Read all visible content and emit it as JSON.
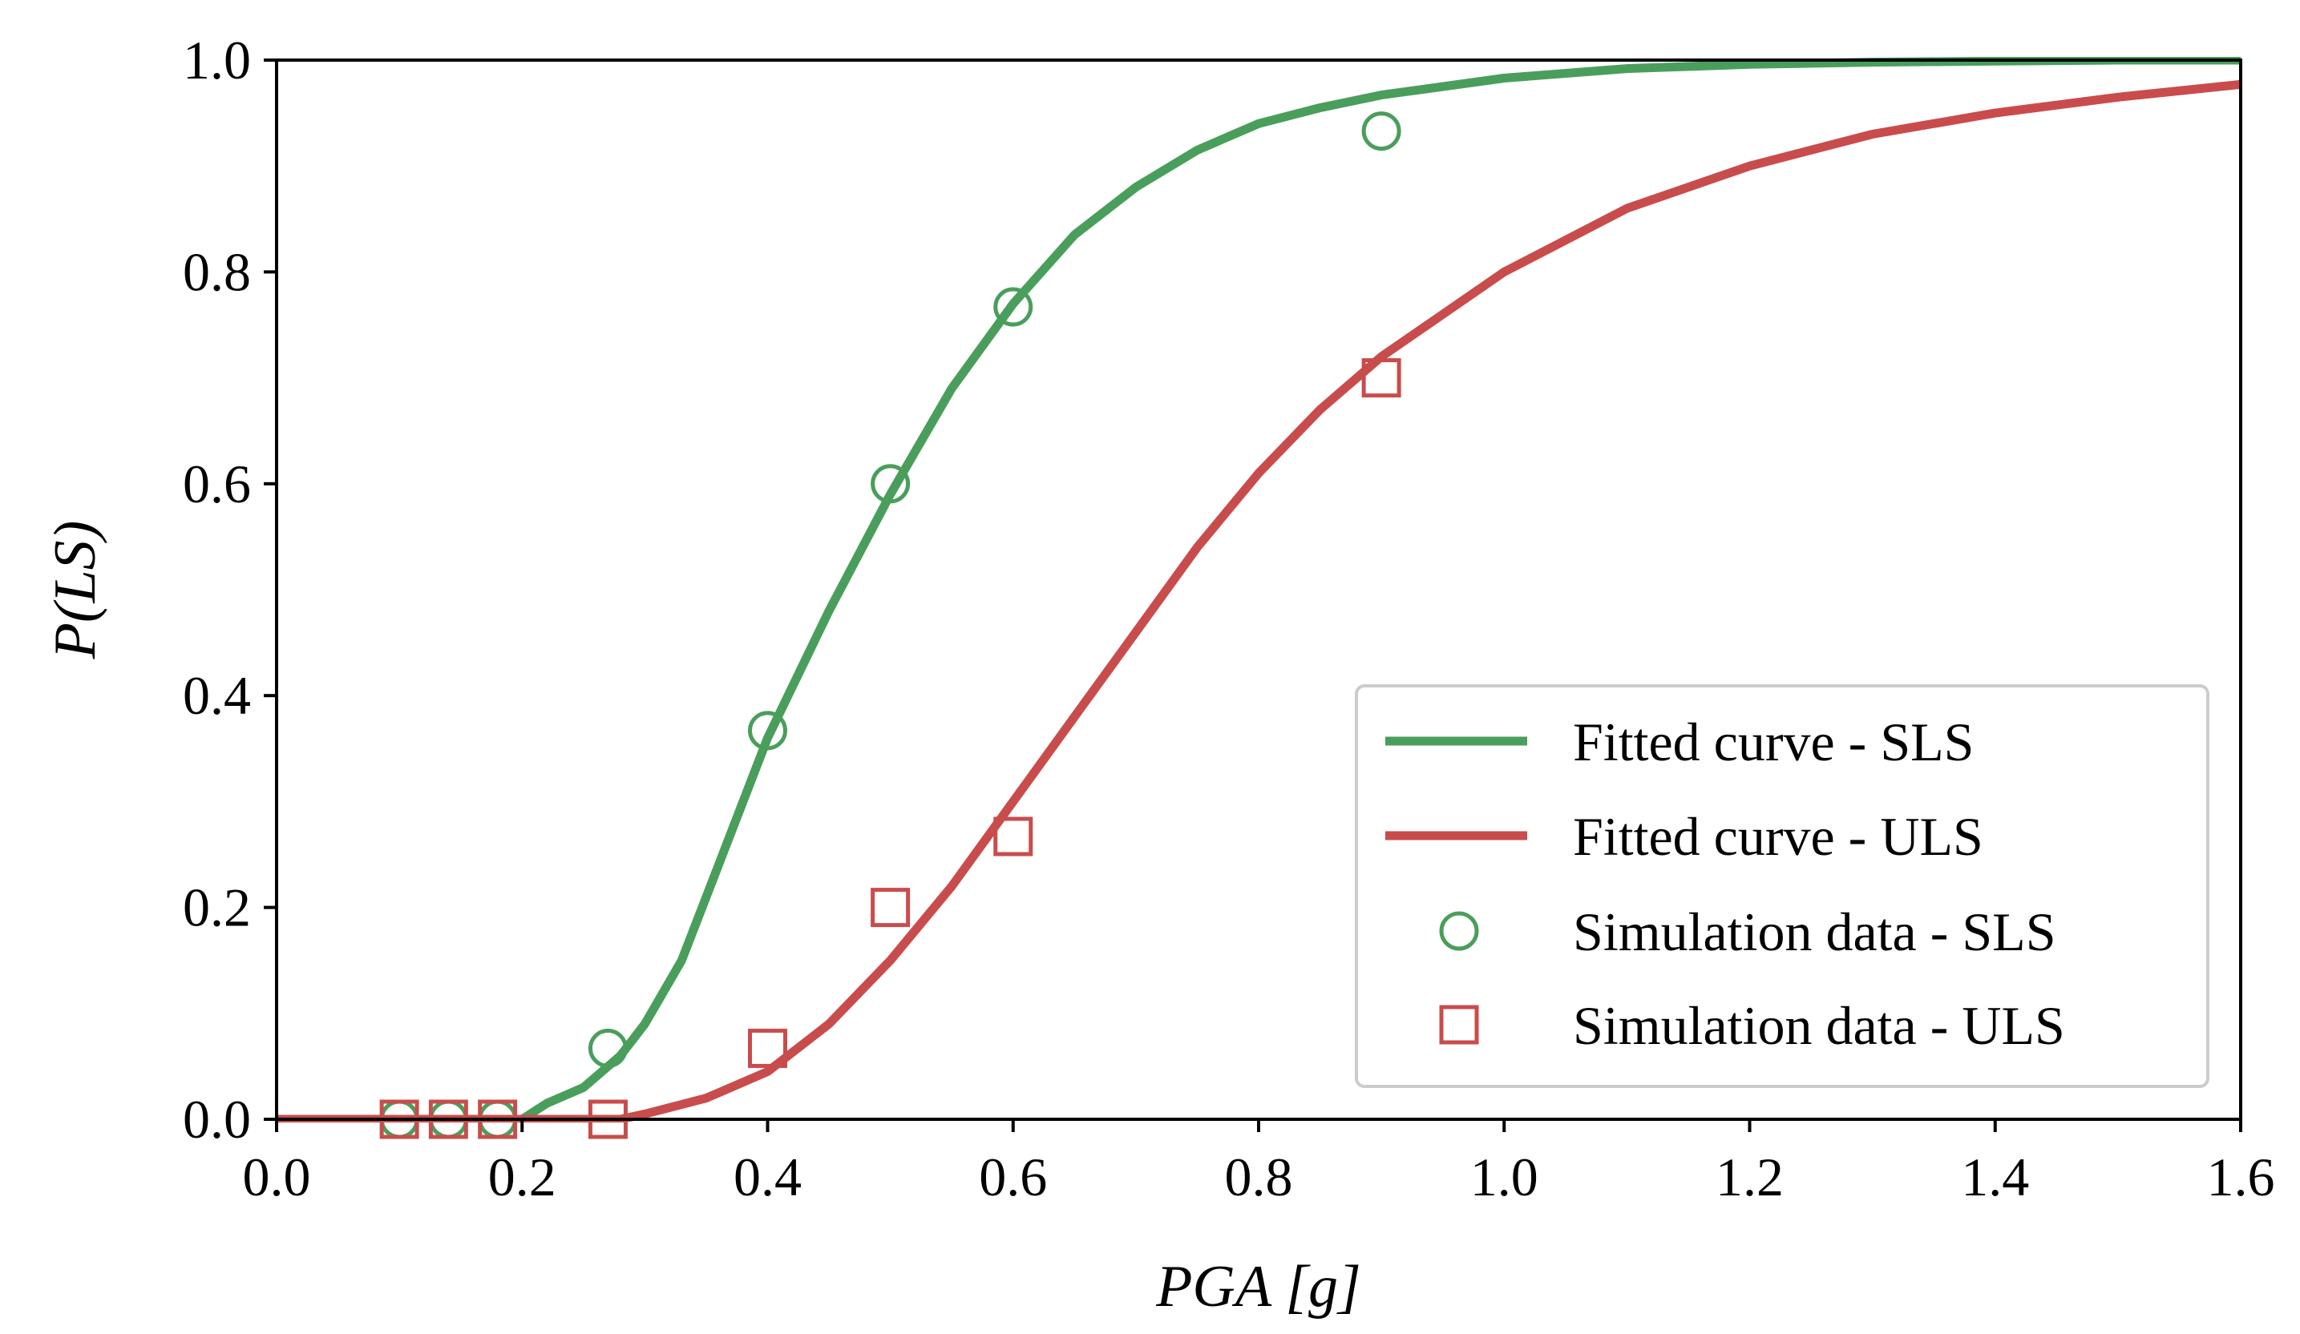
{
  "chart_data": {
    "type": "line",
    "xlabel": "PGA [g]",
    "ylabel": "P(LS)",
    "xlim": [
      0.0,
      1.6
    ],
    "ylim": [
      0.0,
      1.0
    ],
    "xticks": [
      "0.0",
      "0.2",
      "0.4",
      "0.6",
      "0.8",
      "1.0",
      "1.2",
      "1.4",
      "1.6"
    ],
    "yticks": [
      "0.0",
      "0.2",
      "0.4",
      "0.6",
      "0.8",
      "1.0"
    ],
    "grid": false,
    "legend_position": "lower-right",
    "series": [
      {
        "name": "Fitted curve - SLS",
        "kind": "line",
        "color": "#4a9e5c",
        "x": [
          0.0,
          0.05,
          0.1,
          0.15,
          0.2,
          0.22,
          0.25,
          0.28,
          0.3,
          0.33,
          0.36,
          0.4,
          0.45,
          0.5,
          0.55,
          0.6,
          0.65,
          0.7,
          0.75,
          0.8,
          0.85,
          0.9,
          1.0,
          1.1,
          1.2,
          1.3,
          1.4,
          1.5,
          1.6
        ],
        "y": [
          0.0,
          0.0,
          0.0,
          0.0,
          0.0,
          0.015,
          0.03,
          0.06,
          0.09,
          0.15,
          0.24,
          0.36,
          0.48,
          0.59,
          0.69,
          0.77,
          0.835,
          0.88,
          0.915,
          0.94,
          0.955,
          0.967,
          0.983,
          0.992,
          0.996,
          0.998,
          0.999,
          1.0,
          1.0
        ]
      },
      {
        "name": "Fitted curve - ULS",
        "kind": "line",
        "color": "#c94c4c",
        "x": [
          0.0,
          0.1,
          0.2,
          0.28,
          0.3,
          0.35,
          0.4,
          0.45,
          0.5,
          0.55,
          0.6,
          0.65,
          0.7,
          0.75,
          0.8,
          0.85,
          0.9,
          1.0,
          1.1,
          1.2,
          1.3,
          1.4,
          1.5,
          1.6
        ],
        "y": [
          0.0,
          0.0,
          0.0,
          0.0,
          0.005,
          0.02,
          0.045,
          0.09,
          0.15,
          0.22,
          0.3,
          0.38,
          0.46,
          0.54,
          0.61,
          0.67,
          0.72,
          0.8,
          0.86,
          0.9,
          0.93,
          0.95,
          0.965,
          0.977
        ]
      },
      {
        "name": "Simulation data - SLS",
        "kind": "scatter",
        "marker": "circle",
        "color": "#4a9e5c",
        "x": [
          0.1,
          0.14,
          0.18,
          0.27,
          0.4,
          0.5,
          0.6,
          0.9
        ],
        "y": [
          0.0,
          0.0,
          0.0,
          0.067,
          0.367,
          0.6,
          0.767,
          0.933
        ]
      },
      {
        "name": "Simulation data - ULS",
        "kind": "scatter",
        "marker": "square",
        "color": "#c94c4c",
        "x": [
          0.1,
          0.14,
          0.18,
          0.27,
          0.4,
          0.5,
          0.6,
          0.9
        ],
        "y": [
          0.0,
          0.0,
          0.0,
          0.0,
          0.067,
          0.2,
          0.267,
          0.7
        ]
      }
    ]
  }
}
